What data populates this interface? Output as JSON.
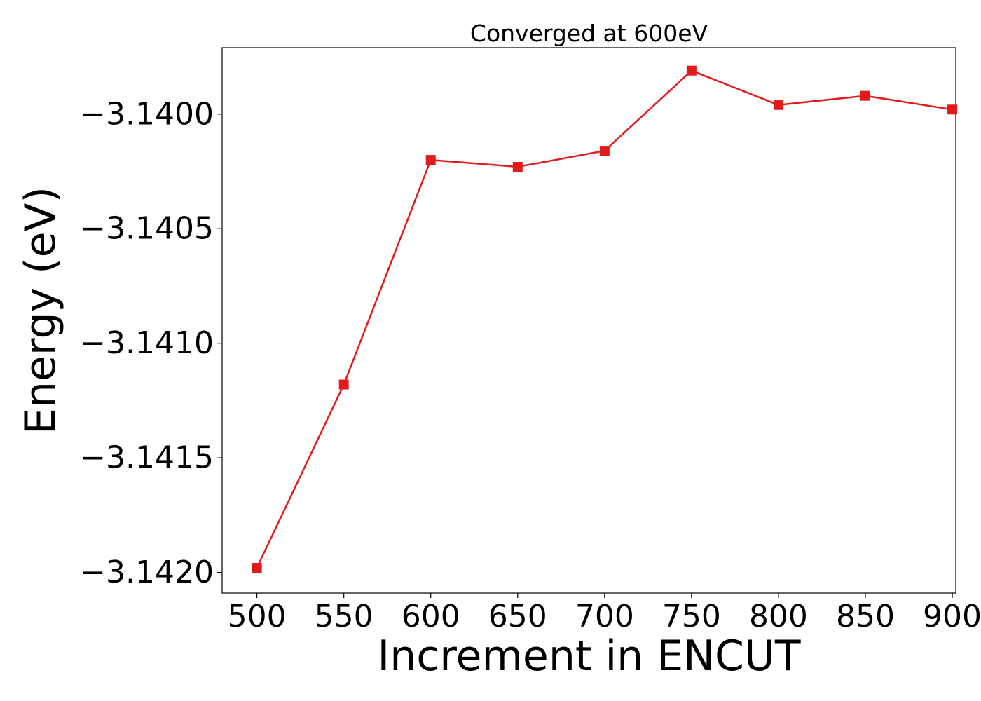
{
  "chart_data": {
    "type": "line",
    "title": "Converged at 600eV",
    "xlabel": "Increment in ENCUT",
    "ylabel": "Energy (eV)",
    "x": [
      500,
      550,
      600,
      650,
      700,
      750,
      800,
      850,
      900
    ],
    "x_tick_labels": [
      "500",
      "550",
      "600",
      "650",
      "700",
      "750",
      "800",
      "850",
      "900"
    ],
    "y_ticks": [
      -3.14,
      -3.1405,
      -3.141,
      -3.1415,
      -3.142
    ],
    "y_tick_labels": [
      "−3.1400",
      "−3.1405",
      "−3.1410",
      "−3.1415",
      "−3.1420"
    ],
    "series": [
      {
        "values": [
          -3.14198,
          -3.14118,
          -3.1402,
          -3.14023,
          -3.14016,
          -3.13981,
          -3.13996,
          -3.13992,
          -3.13998
        ],
        "color": "#e31a1c",
        "marker": "square"
      }
    ],
    "xlim": [
      480,
      902
    ],
    "ylim": [
      -3.14209,
      -3.13971
    ],
    "grid": false,
    "legend": "none"
  }
}
